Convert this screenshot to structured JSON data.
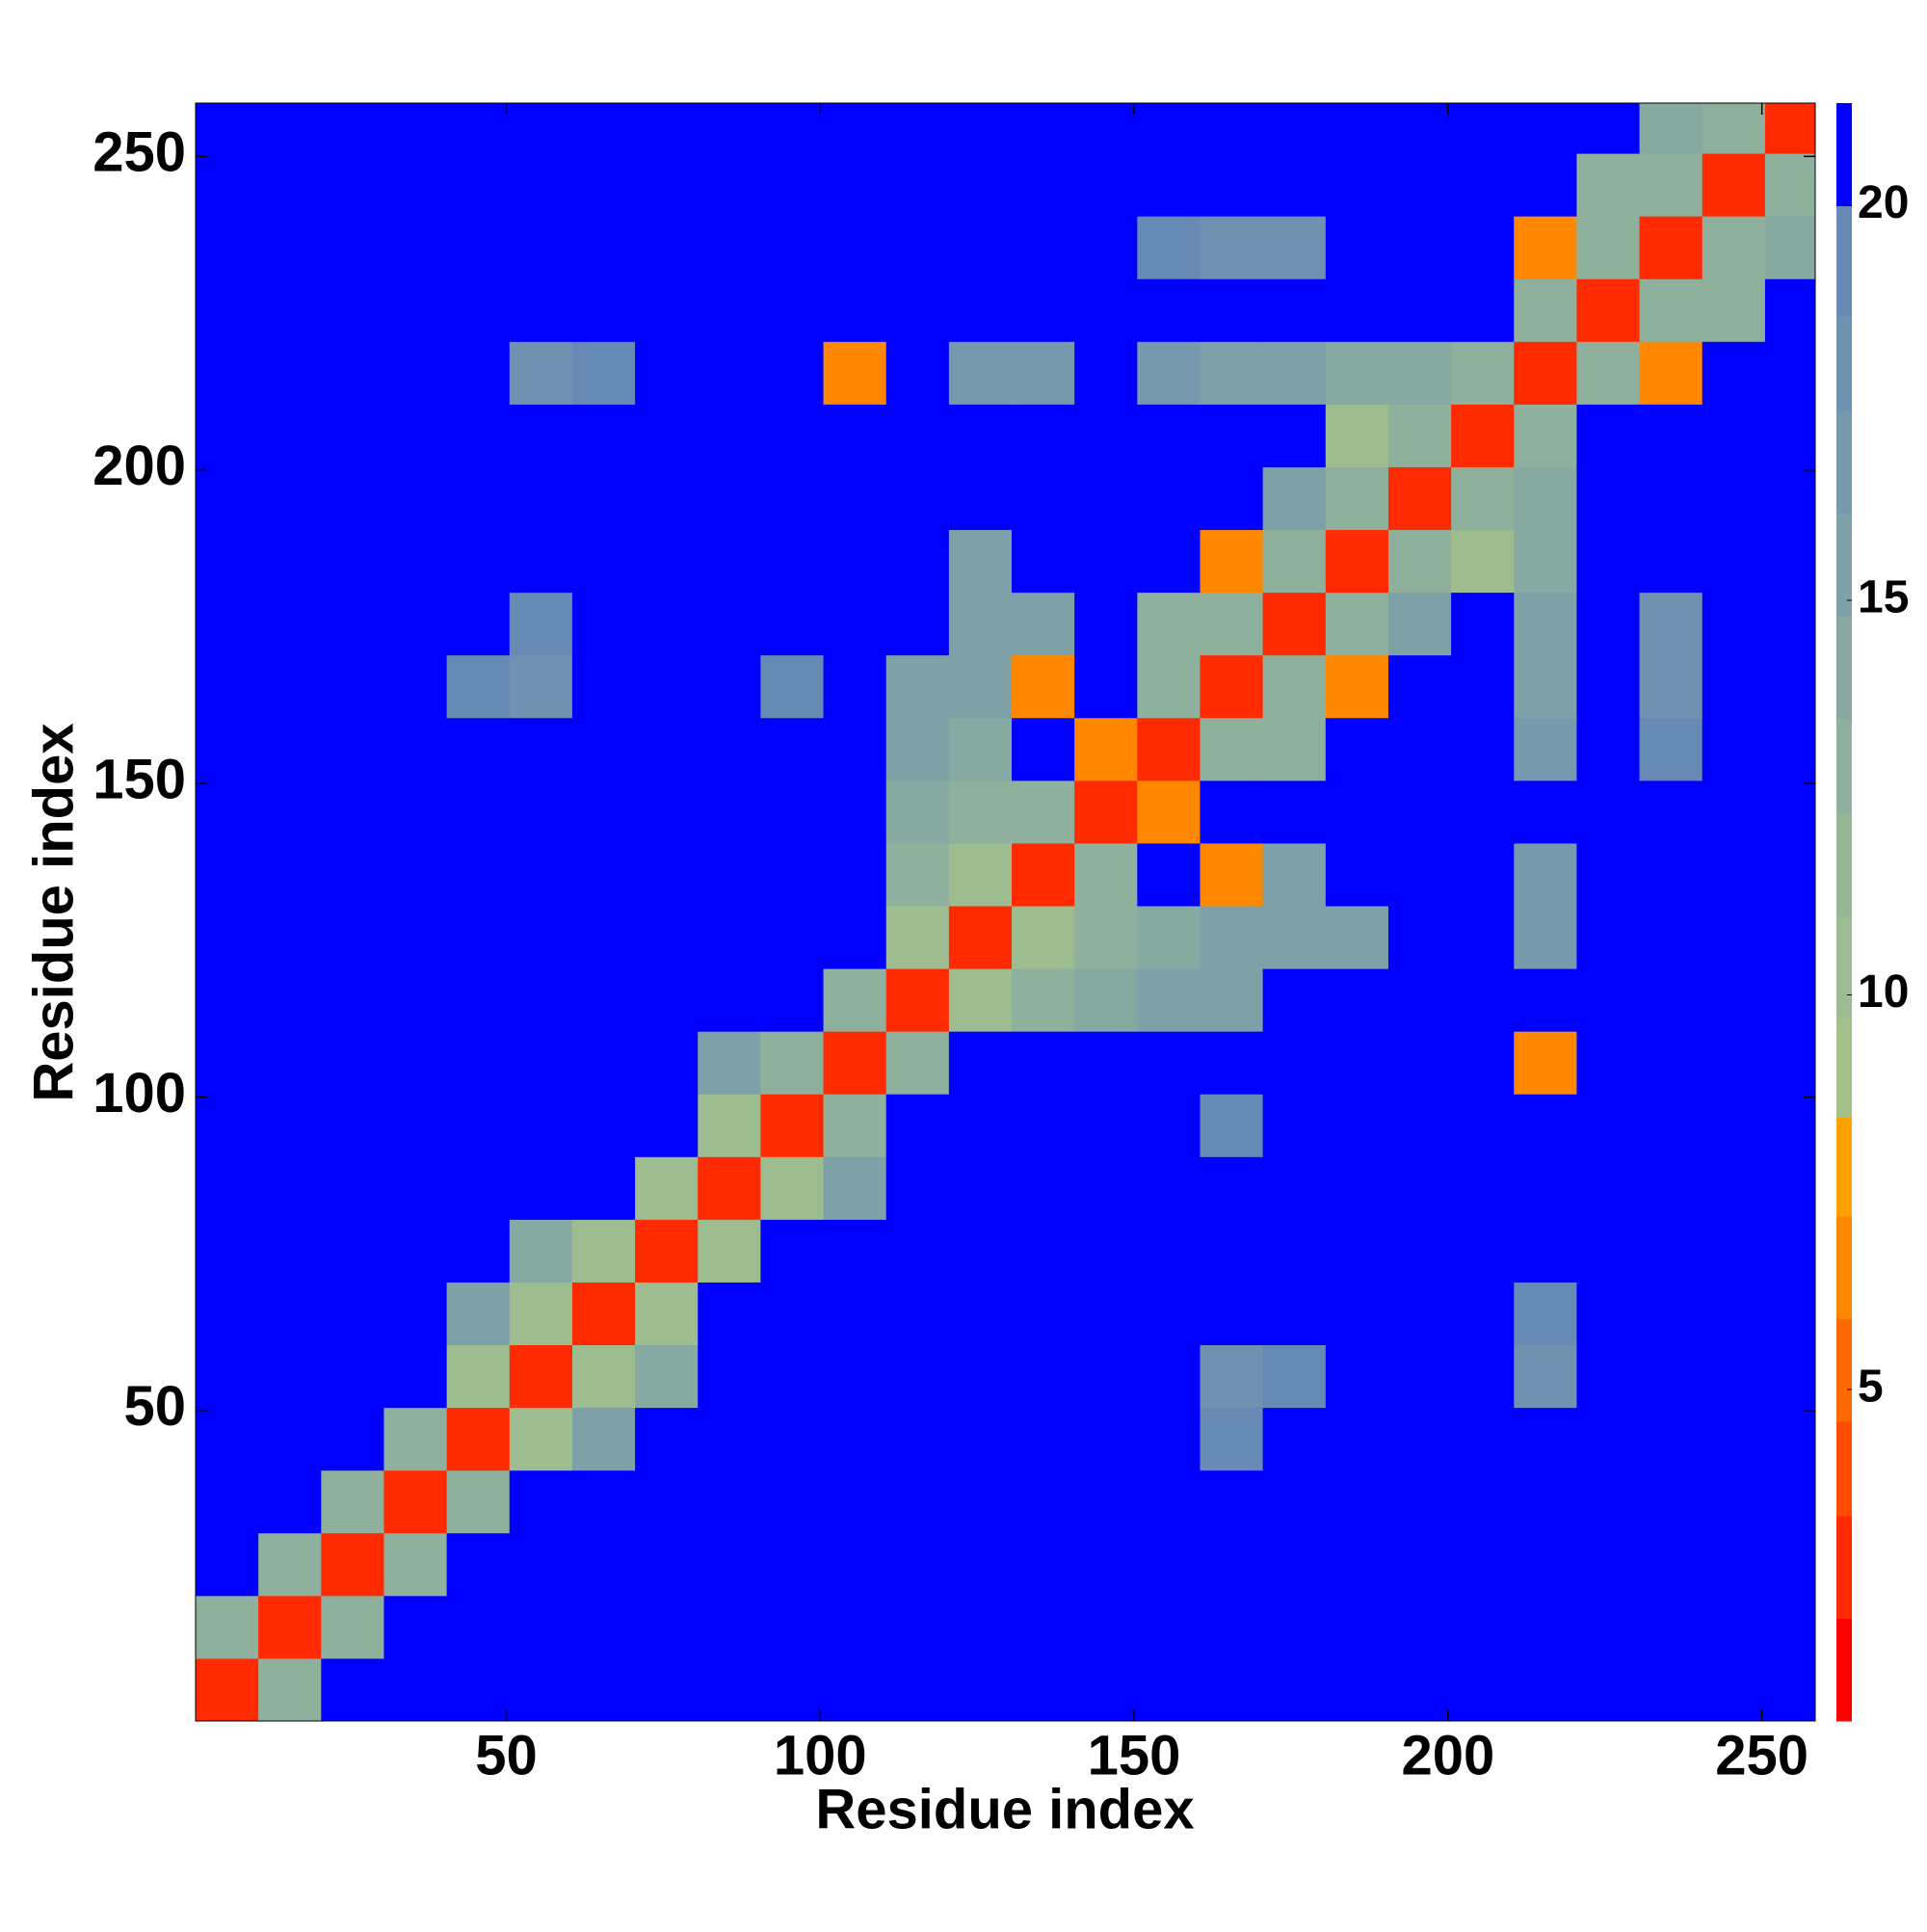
{
  "chart_data": {
    "type": "heatmap",
    "xlabel": "Residue index",
    "ylabel": "Residue index",
    "xlim": [
      0.5,
      258.5
    ],
    "ylim": [
      0.5,
      258.5
    ],
    "xticks": [
      50,
      100,
      150,
      200,
      250
    ],
    "yticks": [
      50,
      100,
      150,
      200,
      250
    ],
    "bins": [
      0.5,
      10.5,
      20.5,
      30.5,
      40.5,
      50.5,
      60.5,
      70.5,
      80.5,
      90.5,
      100.5,
      110.5,
      120.5,
      130.5,
      140.5,
      150.5,
      160.5,
      170.5,
      180.5,
      190.5,
      200.5,
      210.5,
      220.5,
      230.5,
      240.5,
      250.5,
      258.5
    ],
    "z": [
      [
        3,
        13,
        21,
        21,
        21,
        21,
        21,
        21,
        21,
        21,
        21,
        21,
        21,
        21,
        21,
        21,
        21,
        21,
        21,
        21,
        21,
        21,
        21,
        21,
        21,
        21
      ],
      [
        13,
        3,
        13,
        21,
        21,
        21,
        21,
        21,
        21,
        21,
        21,
        21,
        21,
        21,
        21,
        21,
        21,
        21,
        21,
        21,
        21,
        21,
        21,
        21,
        21,
        21
      ],
      [
        21,
        13,
        3,
        13,
        21,
        21,
        21,
        21,
        21,
        21,
        21,
        21,
        21,
        21,
        21,
        21,
        21,
        21,
        21,
        21,
        21,
        21,
        21,
        21,
        21,
        21
      ],
      [
        21,
        21,
        13,
        3,
        13,
        21,
        21,
        21,
        21,
        21,
        21,
        21,
        21,
        21,
        21,
        21,
        21,
        21,
        21,
        21,
        21,
        21,
        21,
        21,
        21,
        21
      ],
      [
        21,
        21,
        21,
        13,
        3,
        11,
        16,
        21,
        21,
        21,
        21,
        21,
        21,
        21,
        21,
        21,
        19,
        21,
        21,
        21,
        21,
        21,
        21,
        21,
        21,
        21
      ],
      [
        21,
        21,
        21,
        21,
        11,
        3,
        11,
        14,
        21,
        21,
        21,
        21,
        21,
        21,
        21,
        21,
        18,
        19,
        21,
        21,
        21,
        18,
        21,
        21,
        21,
        21
      ],
      [
        21,
        21,
        21,
        21,
        16,
        11,
        3,
        11,
        21,
        21,
        21,
        21,
        21,
        21,
        21,
        21,
        21,
        21,
        21,
        21,
        21,
        19,
        21,
        21,
        21,
        21
      ],
      [
        21,
        21,
        21,
        21,
        21,
        14,
        11,
        3,
        11,
        21,
        21,
        21,
        21,
        21,
        21,
        21,
        21,
        21,
        21,
        21,
        21,
        21,
        21,
        21,
        21,
        21
      ],
      [
        21,
        21,
        21,
        21,
        21,
        21,
        21,
        11,
        3,
        11,
        15,
        21,
        21,
        21,
        21,
        21,
        21,
        21,
        21,
        21,
        21,
        21,
        21,
        21,
        21,
        21
      ],
      [
        21,
        21,
        21,
        21,
        21,
        21,
        21,
        21,
        11,
        3,
        13,
        21,
        21,
        21,
        21,
        21,
        19,
        21,
        21,
        21,
        21,
        21,
        21,
        21,
        21,
        21
      ],
      [
        21,
        21,
        21,
        21,
        21,
        21,
        21,
        21,
        15,
        13,
        3,
        13,
        21,
        21,
        21,
        21,
        21,
        21,
        21,
        21,
        21,
        7,
        21,
        21,
        21,
        21
      ],
      [
        21,
        21,
        21,
        21,
        21,
        21,
        21,
        21,
        21,
        21,
        13,
        3,
        11,
        13,
        14,
        16,
        16,
        21,
        21,
        21,
        21,
        21,
        21,
        21,
        21,
        21
      ],
      [
        21,
        21,
        21,
        21,
        21,
        21,
        21,
        21,
        21,
        21,
        21,
        11,
        3,
        11,
        13,
        14,
        15,
        16,
        16,
        21,
        21,
        17,
        21,
        21,
        21,
        21
      ],
      [
        21,
        21,
        21,
        21,
        21,
        21,
        21,
        21,
        21,
        21,
        21,
        13,
        11,
        3,
        13,
        21,
        7,
        15,
        21,
        21,
        21,
        17,
        21,
        21,
        21,
        21
      ],
      [
        21,
        21,
        21,
        21,
        21,
        21,
        21,
        21,
        21,
        21,
        21,
        14,
        13,
        13,
        3,
        6,
        21,
        21,
        21,
        21,
        21,
        21,
        21,
        21,
        21,
        21
      ],
      [
        21,
        21,
        21,
        21,
        21,
        21,
        21,
        21,
        21,
        21,
        21,
        16,
        14,
        21,
        6,
        3,
        13,
        13,
        21,
        21,
        21,
        17,
        21,
        19,
        21,
        21
      ],
      [
        21,
        21,
        21,
        21,
        19,
        18,
        21,
        21,
        21,
        19,
        21,
        16,
        15,
        7,
        21,
        13,
        3,
        13,
        6,
        21,
        21,
        15,
        21,
        18,
        21,
        21
      ],
      [
        21,
        21,
        21,
        21,
        21,
        19,
        21,
        21,
        21,
        21,
        21,
        21,
        16,
        15,
        21,
        13,
        13,
        3,
        13,
        15,
        21,
        16,
        21,
        18,
        21,
        21
      ],
      [
        21,
        21,
        21,
        21,
        21,
        21,
        21,
        21,
        21,
        21,
        21,
        21,
        16,
        21,
        21,
        21,
        6,
        13,
        3,
        13,
        10,
        14,
        21,
        21,
        21,
        21
      ],
      [
        21,
        21,
        21,
        21,
        21,
        21,
        21,
        21,
        21,
        21,
        21,
        21,
        21,
        21,
        21,
        21,
        21,
        15,
        13,
        3,
        13,
        14,
        21,
        21,
        21,
        21
      ],
      [
        21,
        21,
        21,
        21,
        21,
        21,
        21,
        21,
        21,
        21,
        21,
        21,
        21,
        21,
        21,
        21,
        21,
        21,
        10,
        13,
        3,
        13,
        21,
        21,
        21,
        21
      ],
      [
        21,
        21,
        21,
        21,
        21,
        18,
        19,
        21,
        21,
        21,
        7,
        21,
        17,
        17,
        21,
        17,
        15,
        16,
        14,
        14,
        13,
        3,
        13,
        7,
        21,
        21
      ],
      [
        21,
        21,
        21,
        21,
        21,
        21,
        21,
        21,
        21,
        21,
        21,
        21,
        21,
        21,
        21,
        21,
        21,
        21,
        21,
        21,
        21,
        13,
        3,
        13,
        13,
        21
      ],
      [
        21,
        21,
        21,
        21,
        21,
        21,
        21,
        21,
        21,
        21,
        21,
        21,
        21,
        21,
        21,
        19,
        18,
        18,
        21,
        21,
        21,
        7,
        13,
        3,
        13,
        14
      ],
      [
        21,
        21,
        21,
        21,
        21,
        21,
        21,
        21,
        21,
        21,
        21,
        21,
        21,
        21,
        21,
        21,
        21,
        21,
        21,
        21,
        21,
        21,
        13,
        13,
        3,
        13
      ],
      [
        21,
        21,
        21,
        21,
        21,
        21,
        21,
        21,
        21,
        21,
        21,
        21,
        21,
        21,
        21,
        21,
        21,
        21,
        21,
        21,
        21,
        21,
        21,
        14,
        13,
        3
      ]
    ],
    "colorbar": {
      "levels": [
        0.8,
        2.1,
        3.4,
        4.6,
        5.9,
        7.2,
        8.45,
        9.7,
        11,
        12.3,
        13.5,
        14.8,
        16.1,
        17.4,
        18.6,
        20,
        21.3
      ],
      "colors": [
        "#ff0000",
        "#ff2a00",
        "#ff4d00",
        "#ff6a00",
        "#ff8800",
        "#ffa200",
        "#a3c08a",
        "#9dbc90",
        "#96b796",
        "#8eb09c",
        "#86a9a2",
        "#7ea1a8",
        "#7699ad",
        "#6f92b1",
        "#678ab5",
        "#0000ff"
      ],
      "ticks": [
        5,
        10,
        15,
        20
      ]
    }
  }
}
